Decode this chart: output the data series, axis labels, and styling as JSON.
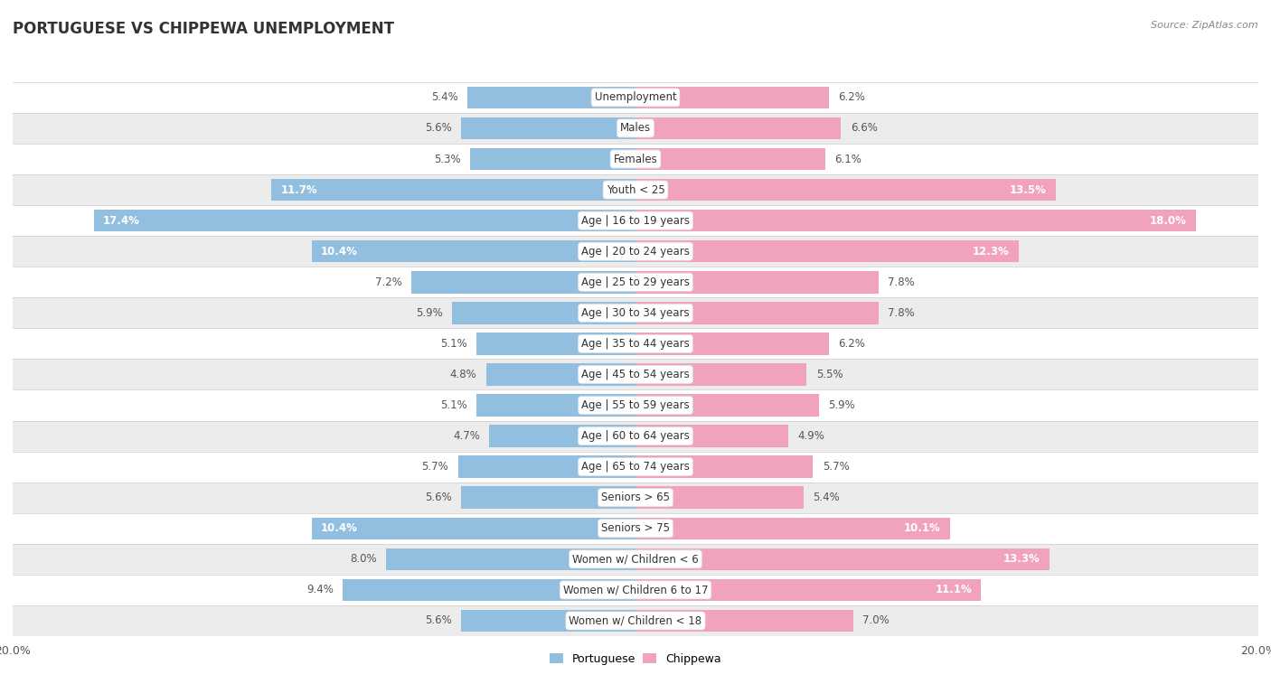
{
  "title": "PORTUGUESE VS CHIPPEWA UNEMPLOYMENT",
  "source": "Source: ZipAtlas.com",
  "categories": [
    "Unemployment",
    "Males",
    "Females",
    "Youth < 25",
    "Age | 16 to 19 years",
    "Age | 20 to 24 years",
    "Age | 25 to 29 years",
    "Age | 30 to 34 years",
    "Age | 35 to 44 years",
    "Age | 45 to 54 years",
    "Age | 55 to 59 years",
    "Age | 60 to 64 years",
    "Age | 65 to 74 years",
    "Seniors > 65",
    "Seniors > 75",
    "Women w/ Children < 6",
    "Women w/ Children 6 to 17",
    "Women w/ Children < 18"
  ],
  "portuguese": [
    5.4,
    5.6,
    5.3,
    11.7,
    17.4,
    10.4,
    7.2,
    5.9,
    5.1,
    4.8,
    5.1,
    4.7,
    5.7,
    5.6,
    10.4,
    8.0,
    9.4,
    5.6
  ],
  "chippewa": [
    6.2,
    6.6,
    6.1,
    13.5,
    18.0,
    12.3,
    7.8,
    7.8,
    6.2,
    5.5,
    5.9,
    4.9,
    5.7,
    5.4,
    10.1,
    13.3,
    11.1,
    7.0
  ],
  "portuguese_color": "#92bfe0",
  "chippewa_color": "#f2a3bc",
  "row_bg_light": "#ffffff",
  "row_bg_dark": "#ececec",
  "bar_height": 0.72,
  "xlim": 20.0,
  "label_threshold": 10.0,
  "title_fontsize": 12,
  "source_fontsize": 8,
  "cat_fontsize": 8.5,
  "val_fontsize": 8.5
}
